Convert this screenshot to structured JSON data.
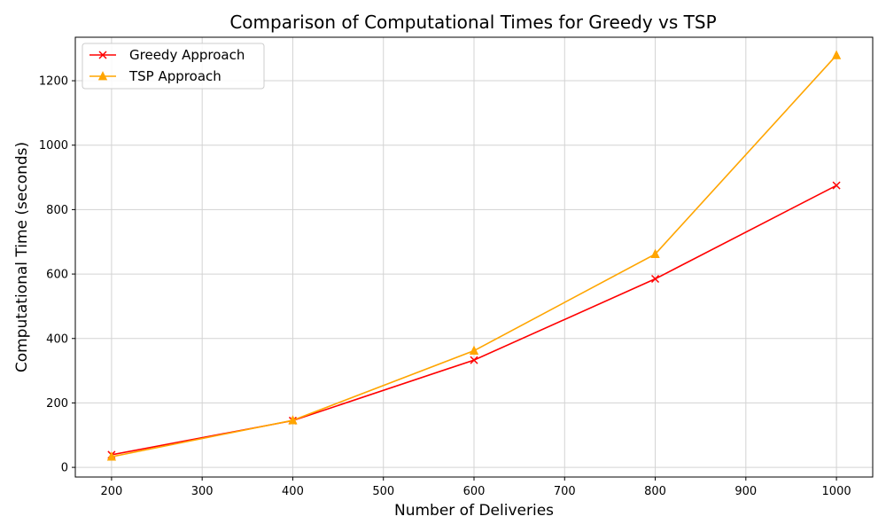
{
  "chart_data": {
    "type": "line",
    "title": "Comparison of Computational Times for Greedy vs TSP",
    "xlabel": "Number of Deliveries",
    "ylabel": "Computational Time (seconds)",
    "x": [
      200,
      400,
      600,
      800,
      1000
    ],
    "xlim": [
      160,
      1040
    ],
    "ylim": [
      -30,
      1335
    ],
    "xticks": [
      200,
      300,
      400,
      500,
      600,
      700,
      800,
      900,
      1000
    ],
    "yticks": [
      0,
      200,
      400,
      600,
      800,
      1000,
      1200
    ],
    "grid": true,
    "legend_position": "top-left",
    "series": [
      {
        "name": "Greedy Approach",
        "values": [
          39,
          145,
          333,
          585,
          875
        ],
        "color": "#ff0000",
        "marker": "x"
      },
      {
        "name": "TSP Approach",
        "values": [
          33,
          146,
          362,
          662,
          1279
        ],
        "color": "#ffa500",
        "marker": "triangle"
      }
    ]
  }
}
